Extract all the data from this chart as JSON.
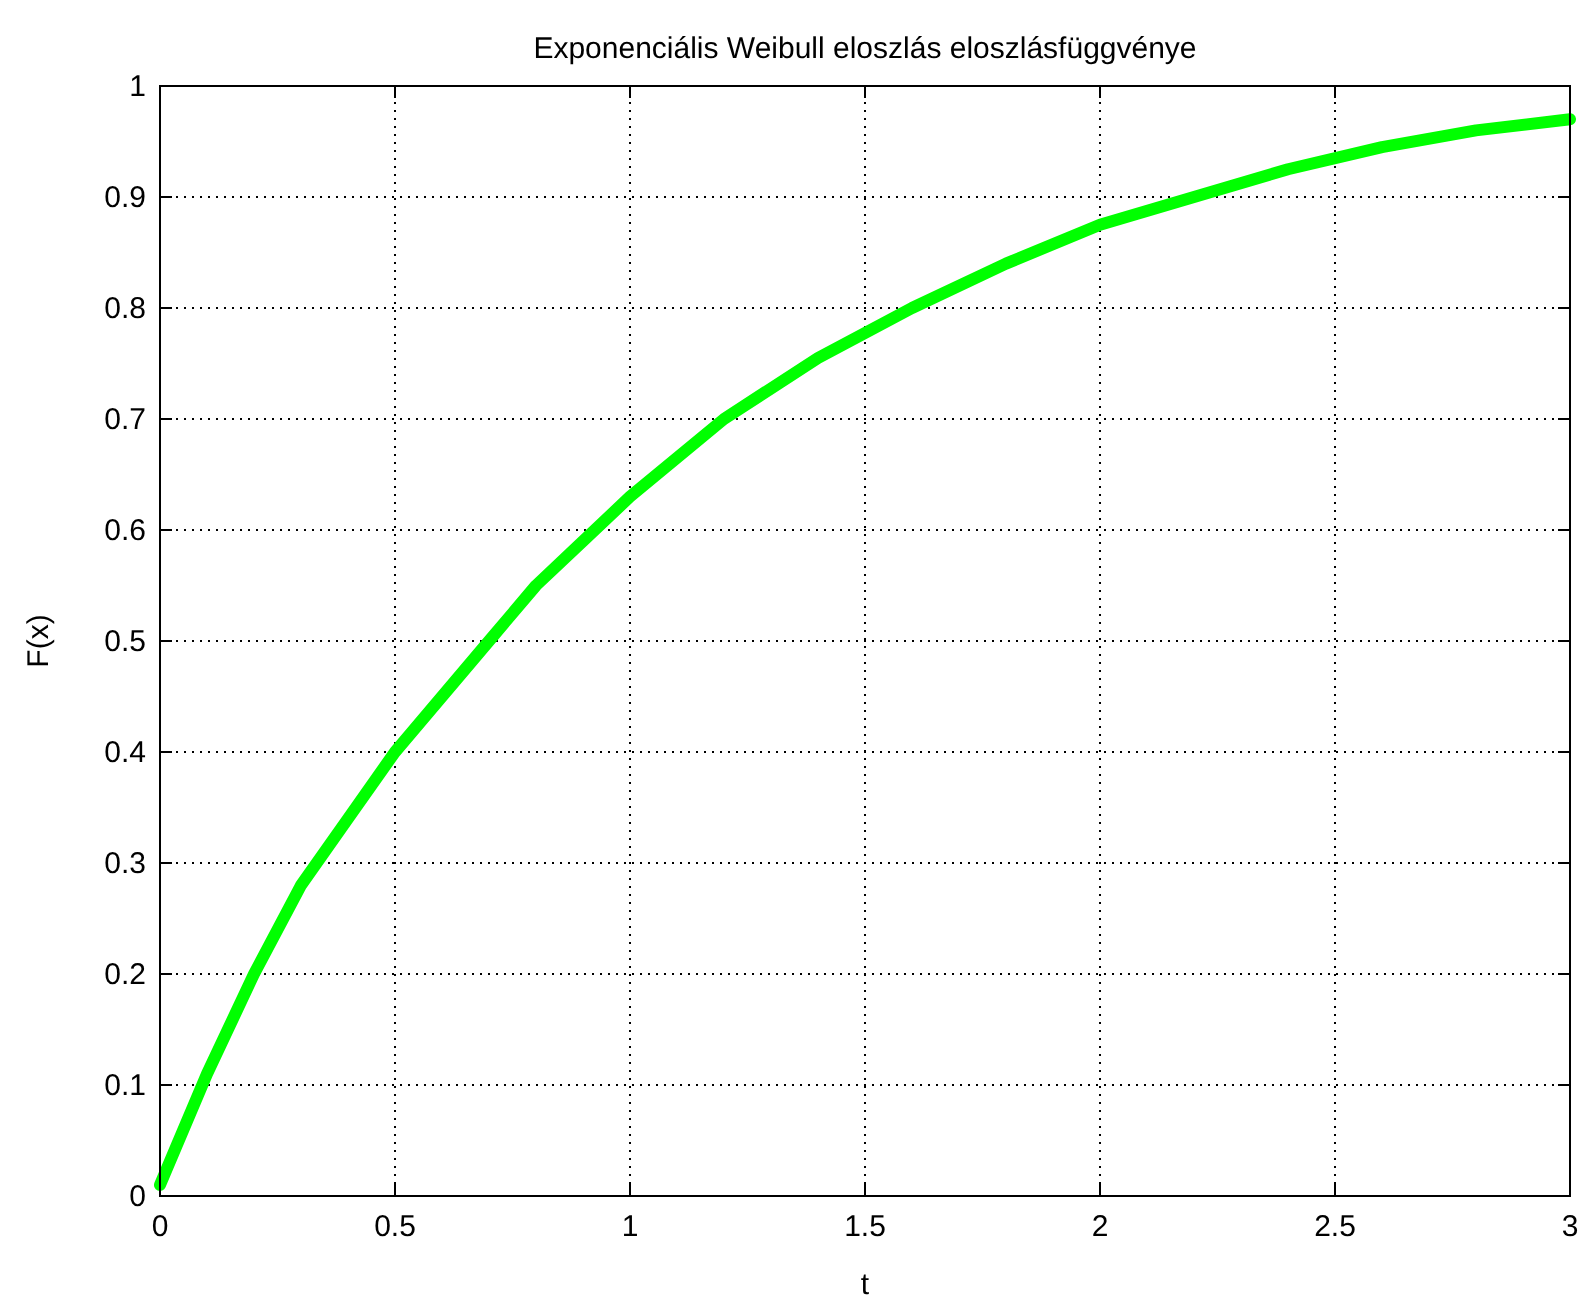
{
  "chart_data": {
    "type": "line",
    "title": "Exponenciális Weibull eloszlás eloszlásfüggvénye",
    "xlabel": "t",
    "ylabel": "F(x)",
    "x": [
      0,
      0.1,
      0.2,
      0.3,
      0.4,
      0.5,
      0.6,
      0.7,
      0.8,
      0.9,
      1,
      1.2,
      1.4,
      1.6,
      1.8,
      2,
      2.2,
      2.4,
      2.6,
      2.8,
      3
    ],
    "series": [
      {
        "color": "#00ff00",
        "values": [
          0.01,
          0.11,
          0.2,
          0.28,
          0.34,
          0.4,
          0.45,
          0.5,
          0.55,
          0.59,
          0.63,
          0.7,
          0.755,
          0.8,
          0.84,
          0.875,
          0.9,
          0.925,
          0.945,
          0.96,
          0.97
        ]
      }
    ],
    "xlim": [
      0,
      3
    ],
    "xticks": [
      0,
      0.5,
      1,
      1.5,
      2,
      2.5,
      3
    ],
    "ylim": [
      0,
      1
    ],
    "yticks": [
      0,
      0.1,
      0.2,
      0.3,
      0.4,
      0.5,
      0.6,
      0.7,
      0.8,
      0.9,
      1
    ],
    "grid": true,
    "marker": "none",
    "line_style": "solid"
  }
}
